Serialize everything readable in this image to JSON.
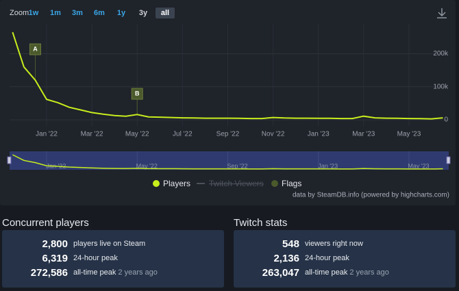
{
  "zoom": {
    "label": "Zoom",
    "buttons": [
      "1w",
      "1m",
      "3m",
      "6m",
      "1y",
      "3y",
      "all"
    ],
    "active": 6
  },
  "chart_data": {
    "type": "line",
    "categories": [
      null,
      null,
      null,
      "Jan '22",
      null,
      null,
      null,
      "Mar '22",
      null,
      null,
      null,
      "May '22",
      null,
      null,
      null,
      "Jul '22",
      null,
      null,
      null,
      "Sep '22",
      null,
      null,
      null,
      "Nov '22",
      null,
      null,
      null,
      "Jan '23",
      null,
      null,
      null,
      "Mar '23",
      null,
      null,
      null,
      "May '23",
      null,
      null,
      null
    ],
    "series": [
      {
        "name": "Players",
        "color": "#c8ee1c",
        "values": [
          265000,
          160000,
          120000,
          62000,
          52000,
          38000,
          30000,
          22000,
          17000,
          13000,
          11000,
          16000,
          9000,
          8000,
          7000,
          6000,
          5500,
          5000,
          5000,
          5000,
          4500,
          4000,
          4000,
          7000,
          5500,
          5000,
          5000,
          4500,
          4500,
          4000,
          4000,
          11000,
          6000,
          5000,
          4500,
          4000,
          3500,
          3000,
          6000
        ]
      }
    ],
    "hidden_series": [
      "Twitch Viewers"
    ],
    "flags": {
      "name": "Flags",
      "color": "#4b5a2c",
      "items": [
        {
          "label": "A",
          "x": 2
        },
        {
          "label": "B",
          "x": 11
        }
      ]
    },
    "ylim": [
      0,
      290000
    ],
    "yticks": [
      {
        "value": 0,
        "label": "0"
      },
      {
        "value": 100000,
        "label": "100k"
      },
      {
        "value": 200000,
        "label": "200k"
      }
    ],
    "grid": true,
    "credit": "data by SteamDB.info (powered by highcharts.com)"
  },
  "stats": [
    {
      "title": "Concurrent players",
      "rows": [
        {
          "value": "2,800",
          "label": "players live on Steam"
        },
        {
          "value": "6,319",
          "label": "24-hour peak"
        },
        {
          "value": "272,586",
          "label": "all-time peak",
          "note": "2 years ago"
        }
      ]
    },
    {
      "title": "Twitch stats",
      "rows": [
        {
          "value": "548",
          "label": "viewers right now"
        },
        {
          "value": "2,136",
          "label": "24-hour peak"
        },
        {
          "value": "263,047",
          "label": "all-time peak",
          "note": "2 years ago"
        }
      ]
    }
  ]
}
